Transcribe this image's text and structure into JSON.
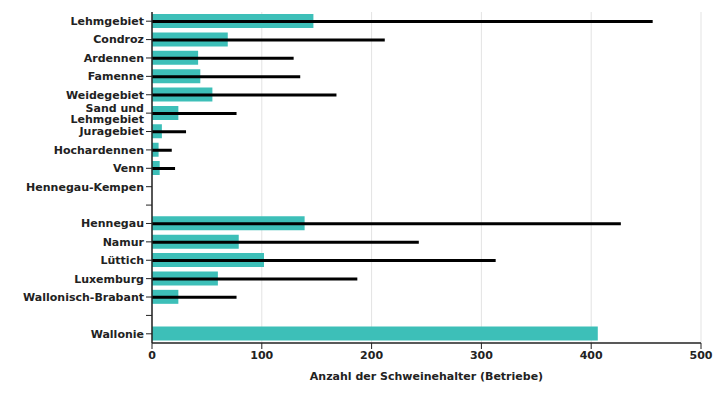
{
  "chart_data": {
    "type": "bar",
    "orientation": "horizontal",
    "xlabel": "Anzahl der Schweinehalter (Betriebe)",
    "categories": [
      "Lehmgebiet",
      "Condroz",
      "Ardennen",
      "Famenne",
      "Weidegebiet",
      "Sand und Lehmgebiet",
      "Juragebiet",
      "Hochardennen",
      "Venn",
      "Hennegau-Kempen",
      null,
      "Hennegau",
      "Namur",
      "Lüttich",
      "Luxemburg",
      "Wallonisch-Brabant",
      null,
      "Wallonie"
    ],
    "series": [
      {
        "color": "#3dbfb8",
        "values": [
          147,
          69,
          42,
          44,
          55,
          24,
          9,
          6,
          7,
          null,
          null,
          139,
          79,
          102,
          60,
          24,
          null,
          406
        ]
      },
      {
        "color": "#000000",
        "values": [
          456,
          212,
          129,
          135,
          168,
          77,
          31,
          18,
          21,
          null,
          null,
          427,
          243,
          313,
          187,
          77,
          null,
          null
        ]
      }
    ],
    "xlim": [
      0,
      500
    ],
    "xticks": [
      0,
      100,
      200,
      300,
      400,
      500
    ],
    "grid": true
  }
}
